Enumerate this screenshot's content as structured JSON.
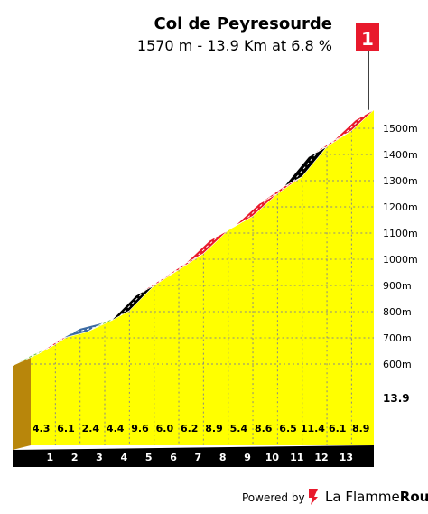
{
  "title": "Col de Peyresourde",
  "subtitle": "1570 m - 13.9 Km at 6.8 %",
  "category_badge": "1",
  "total_distance_label": "13.9",
  "footer": {
    "powered_by": "Powered by",
    "brand_prefix": "La Flamme",
    "brand_suffix": "Rouge"
  },
  "colors": {
    "fill": "#ffff00",
    "base": "#b8860b",
    "axis": "#000000",
    "badge": "#e8192c",
    "gradient_0_3": "#3b6aa3",
    "gradient_3_6": "#7ac943",
    "gradient_6_9": "#e8192c",
    "gradient_9_plus": "#000000"
  },
  "chart_data": {
    "type": "area",
    "title": "Col de Peyresourde",
    "subtitle": "1570 m - 13.9 Km at 6.8 %",
    "x_unit": "km",
    "y_unit": "m",
    "xlim": [
      0,
      13.9
    ],
    "ylim": [
      480,
      1570
    ],
    "y_ticks": [
      "600m",
      "700m",
      "800m",
      "900m",
      "1000m",
      "1100m",
      "1200m",
      "1300m",
      "1400m",
      "1500m"
    ],
    "y_tick_values": [
      600,
      700,
      800,
      900,
      1000,
      1100,
      1200,
      1300,
      1400,
      1500
    ],
    "x_ticks": [
      "1",
      "2",
      "3",
      "4",
      "5",
      "6",
      "7",
      "8",
      "9",
      "10",
      "11",
      "12",
      "13"
    ],
    "km_gradients": [
      4.3,
      6.1,
      2.4,
      4.4,
      9.6,
      6.0,
      6.2,
      8.9,
      5.4,
      8.6,
      6.5,
      11.4,
      6.1,
      8.9
    ],
    "km_gradient_labels": [
      "4.3",
      "6.1",
      "2.4",
      "4.4",
      "9.6",
      "6.0",
      "6.2",
      "8.9",
      "5.4",
      "8.6",
      "6.5",
      "11.4",
      "6.1",
      "8.9"
    ],
    "elevation_profile": {
      "x": [
        0,
        1,
        2,
        3,
        4,
        5,
        6,
        7,
        8,
        9,
        10,
        11,
        12,
        13,
        13.9
      ],
      "y": [
        632,
        675,
        736,
        760,
        804,
        900,
        960,
        1022,
        1111,
        1165,
        1251,
        1316,
        1430,
        1491,
        1570
      ]
    }
  }
}
